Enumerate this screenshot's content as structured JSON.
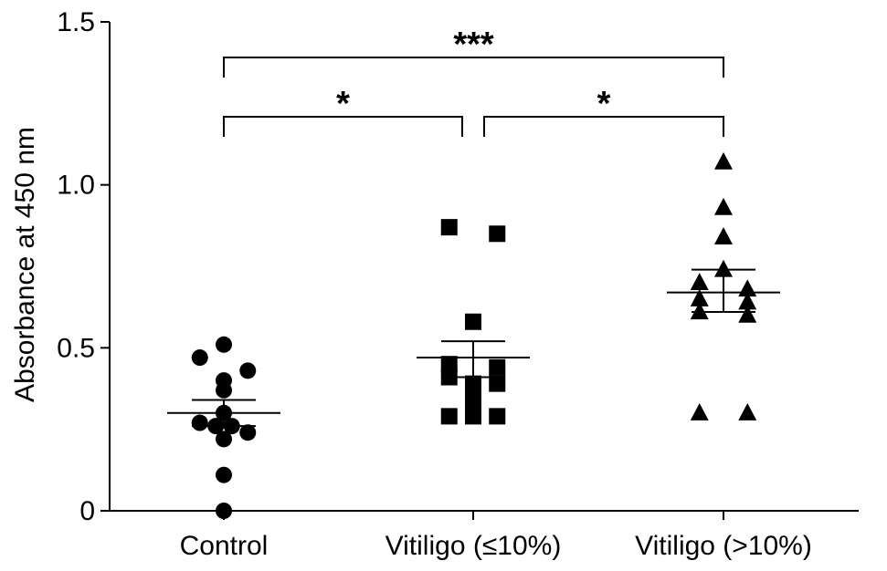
{
  "chart_data": {
    "type": "scatter",
    "ylabel": "Absorbance at 450 nm",
    "ylim": [
      0,
      1.5
    ],
    "yticks": [
      {
        "value": 0,
        "label": "0"
      },
      {
        "value": 0.5,
        "label": "0.5"
      },
      {
        "value": 1.0,
        "label": "1.0"
      },
      {
        "value": 1.5,
        "label": "1.5"
      }
    ],
    "categories": [
      "Control",
      "Vitiligo (≤10%)",
      "Vitiligo (>10%)"
    ],
    "groups": [
      {
        "category": "Control",
        "marker": "circle",
        "points": [
          0.51,
          0.47,
          0.4,
          0.43,
          0.37,
          0.3,
          0.26,
          0.27,
          0.26,
          0.24,
          0.22,
          0.11,
          0.0
        ],
        "mean": 0.3,
        "sem_low": 0.26,
        "sem_high": 0.34
      },
      {
        "category": "Vitiligo (≤10%)",
        "marker": "square",
        "points": [
          0.87,
          0.85,
          0.58,
          0.45,
          0.44,
          0.41,
          0.39,
          0.39,
          0.34,
          0.29,
          0.29,
          0.29
        ],
        "mean": 0.47,
        "sem_low": 0.41,
        "sem_high": 0.52
      },
      {
        "category": "Vitiligo (>10%)",
        "marker": "triangle",
        "points": [
          1.07,
          0.93,
          0.84,
          0.74,
          0.7,
          0.68,
          0.65,
          0.64,
          0.61,
          0.6,
          0.3,
          0.3
        ],
        "mean": 0.67,
        "sem_low": 0.61,
        "sem_high": 0.74
      }
    ],
    "significance": [
      {
        "from": "Control",
        "to": "Vitiligo (>10%)",
        "label": "***"
      },
      {
        "from": "Control",
        "to": "Vitiligo (≤10%)",
        "label": "*"
      },
      {
        "from": "Vitiligo (≤10%)",
        "to": "Vitiligo (>10%)",
        "label": "*"
      }
    ]
  }
}
